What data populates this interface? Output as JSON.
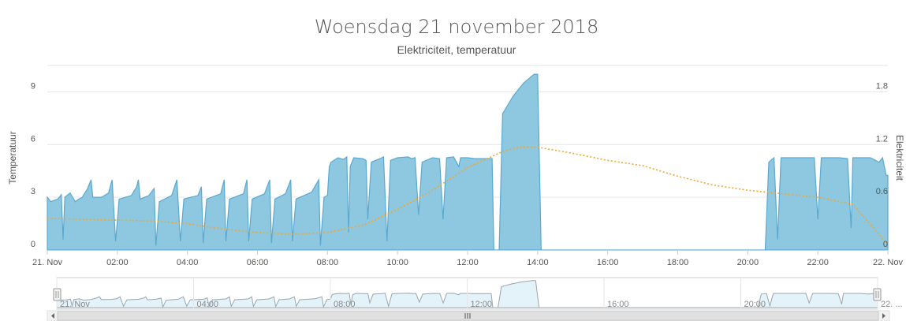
{
  "header": {
    "title": "Woensdag 21 november 2018",
    "subtitle": "Elektriciteit, temperatuur"
  },
  "colors": {
    "electricity_fill": "#8ec7e0",
    "electricity_line": "#5aa9cf",
    "temperature_line": "#f0a830",
    "grid": "#e6e6e6",
    "navigator_fill": "#e4f2f9",
    "navigator_line": "#9aa6ad"
  },
  "chart_data": {
    "type": "area",
    "title": "Woensdag 21 november 2018",
    "subtitle": "Elektriciteit, temperatuur",
    "x_axis": {
      "range": [
        "21. Nov 00:00",
        "22. Nov 00:00"
      ],
      "tick_labels": [
        "21. Nov",
        "02:00",
        "04:00",
        "06:00",
        "08:00",
        "10:00",
        "12:00",
        "14:00",
        "16:00",
        "18:00",
        "20:00",
        "22:00",
        "22. Nov"
      ]
    },
    "y_axis_left": {
      "label": "Temperatuur",
      "range": [
        0,
        10.5
      ],
      "tick_labels": [
        "0",
        "3",
        "6",
        "9"
      ]
    },
    "y_axis_right": {
      "label": "Elektriciteit",
      "range": [
        0,
        2.1
      ],
      "tick_labels": [
        "0",
        "0.6",
        "1.2",
        "1.8"
      ]
    },
    "grid": true,
    "legend": "none",
    "series": [
      {
        "axis": "right",
        "style": "area",
        "note_points": "hour, Elektriciteit",
        "points": [
          [
            0.0,
            0.6
          ],
          [
            0.1,
            0.55
          ],
          [
            0.3,
            0.58
          ],
          [
            0.4,
            0.63
          ],
          [
            0.45,
            0.12
          ],
          [
            0.5,
            0.6
          ],
          [
            0.65,
            0.65
          ],
          [
            0.8,
            0.55
          ],
          [
            0.9,
            0.58
          ],
          [
            1.0,
            0.6
          ],
          [
            1.15,
            0.7
          ],
          [
            1.25,
            0.8
          ],
          [
            1.3,
            0.6
          ],
          [
            1.55,
            0.6
          ],
          [
            1.75,
            0.65
          ],
          [
            1.85,
            0.8
          ],
          [
            1.95,
            0.1
          ],
          [
            2.05,
            0.58
          ],
          [
            2.4,
            0.62
          ],
          [
            2.55,
            0.72
          ],
          [
            2.6,
            0.8
          ],
          [
            2.65,
            0.58
          ],
          [
            2.9,
            0.62
          ],
          [
            3.05,
            0.7
          ],
          [
            3.1,
            0.05
          ],
          [
            3.2,
            0.55
          ],
          [
            3.55,
            0.62
          ],
          [
            3.7,
            0.8
          ],
          [
            3.8,
            0.1
          ],
          [
            3.9,
            0.58
          ],
          [
            4.3,
            0.62
          ],
          [
            4.4,
            0.72
          ],
          [
            4.45,
            0.08
          ],
          [
            4.55,
            0.58
          ],
          [
            4.95,
            0.64
          ],
          [
            5.05,
            0.8
          ],
          [
            5.1,
            0.1
          ],
          [
            5.2,
            0.58
          ],
          [
            5.6,
            0.64
          ],
          [
            5.7,
            0.8
          ],
          [
            5.75,
            0.1
          ],
          [
            5.85,
            0.58
          ],
          [
            6.2,
            0.64
          ],
          [
            6.35,
            0.8
          ],
          [
            6.4,
            0.08
          ],
          [
            6.5,
            0.58
          ],
          [
            6.8,
            0.64
          ],
          [
            6.95,
            0.8
          ],
          [
            7.0,
            0.1
          ],
          [
            7.1,
            0.58
          ],
          [
            7.55,
            0.66
          ],
          [
            7.75,
            0.8
          ],
          [
            7.8,
            0.05
          ],
          [
            7.9,
            0.6
          ],
          [
            8.0,
            0.62
          ],
          [
            8.05,
            0.95
          ],
          [
            8.1,
            1.0
          ],
          [
            8.3,
            1.05
          ],
          [
            8.45,
            1.03
          ],
          [
            8.55,
            1.06
          ],
          [
            8.6,
            0.2
          ],
          [
            8.65,
            0.95
          ],
          [
            8.75,
            1.05
          ],
          [
            9.0,
            1.04
          ],
          [
            9.1,
            1.02
          ],
          [
            9.15,
            0.35
          ],
          [
            9.25,
            1.0
          ],
          [
            9.5,
            1.04
          ],
          [
            9.6,
            1.06
          ],
          [
            9.7,
            0.1
          ],
          [
            9.8,
            1.02
          ],
          [
            10.0,
            1.05
          ],
          [
            10.3,
            1.06
          ],
          [
            10.4,
            1.04
          ],
          [
            10.5,
            1.05
          ],
          [
            10.6,
            0.4
          ],
          [
            10.7,
            1.0
          ],
          [
            11.0,
            1.05
          ],
          [
            11.2,
            1.04
          ],
          [
            11.3,
            0.35
          ],
          [
            11.4,
            1.05
          ],
          [
            11.6,
            1.06
          ],
          [
            11.75,
            0.95
          ],
          [
            11.8,
            1.05
          ],
          [
            12.0,
            1.05
          ],
          [
            12.2,
            1.04
          ],
          [
            12.7,
            1.04
          ],
          [
            12.75,
            0.0
          ],
          [
            12.9,
            0.0
          ],
          [
            13.0,
            1.55
          ],
          [
            13.3,
            1.75
          ],
          [
            13.6,
            1.9
          ],
          [
            13.9,
            2.0
          ],
          [
            14.0,
            2.0
          ],
          [
            14.1,
            0.0
          ],
          [
            20.5,
            0.0
          ],
          [
            20.6,
            1.0
          ],
          [
            20.75,
            1.05
          ],
          [
            20.85,
            0.12
          ],
          [
            20.95,
            1.05
          ],
          [
            21.5,
            1.05
          ],
          [
            21.9,
            1.05
          ],
          [
            22.0,
            0.35
          ],
          [
            22.1,
            1.05
          ],
          [
            22.6,
            1.05
          ],
          [
            22.85,
            1.04
          ],
          [
            22.95,
            0.25
          ],
          [
            23.0,
            1.05
          ],
          [
            23.5,
            1.05
          ],
          [
            23.75,
            1.0
          ],
          [
            23.85,
            1.05
          ],
          [
            23.95,
            0.85
          ],
          [
            24.0,
            0.85
          ]
        ]
      },
      {
        "axis": "left",
        "style": "dotted-line",
        "note_points": "hour, Temperatuur",
        "points": [
          [
            0.0,
            1.8
          ],
          [
            1.0,
            1.75
          ],
          [
            2.0,
            1.7
          ],
          [
            3.0,
            1.65
          ],
          [
            4.0,
            1.5
          ],
          [
            5.0,
            1.2
          ],
          [
            6.0,
            1.0
          ],
          [
            7.0,
            0.9
          ],
          [
            8.0,
            1.0
          ],
          [
            9.0,
            1.4
          ],
          [
            10.0,
            2.3
          ],
          [
            11.0,
            3.4
          ],
          [
            12.0,
            4.7
          ],
          [
            13.0,
            5.6
          ],
          [
            13.5,
            5.85
          ],
          [
            14.0,
            5.85
          ],
          [
            15.0,
            5.5
          ],
          [
            16.0,
            5.1
          ],
          [
            17.0,
            4.8
          ],
          [
            18.0,
            4.2
          ],
          [
            19.0,
            3.7
          ],
          [
            20.0,
            3.4
          ],
          [
            21.0,
            3.2
          ],
          [
            22.0,
            3.0
          ],
          [
            23.0,
            2.6
          ],
          [
            24.0,
            0.3
          ]
        ]
      }
    ]
  },
  "navigator": {
    "tick_labels": [
      "21. Nov",
      "04:00",
      "08:00",
      "12:00",
      "16:00",
      "20:00",
      "22. ..."
    ]
  }
}
